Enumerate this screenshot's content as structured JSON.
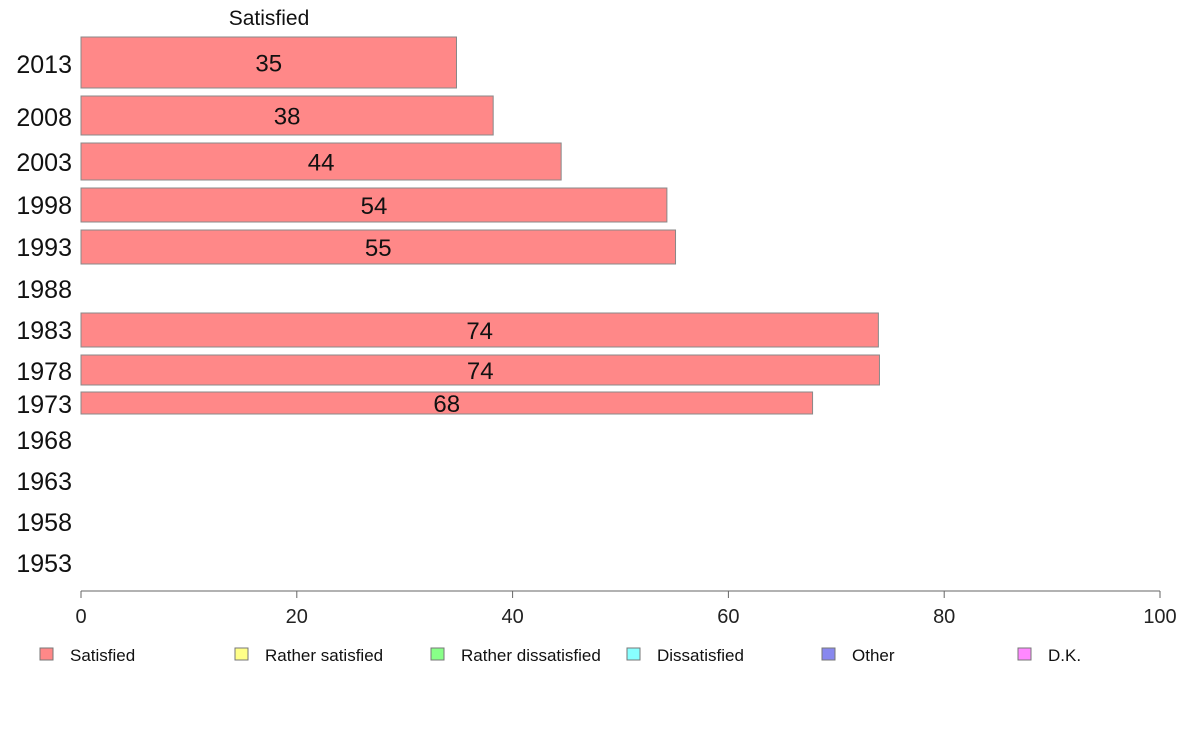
{
  "chart_data": {
    "type": "bar",
    "orientation": "horizontal",
    "column_header": "Satisfied",
    "categories": [
      "2013",
      "2008",
      "2003",
      "1998",
      "1993",
      "1988",
      "1983",
      "1978",
      "1973",
      "1968",
      "1963",
      "1958",
      "1953"
    ],
    "series": [
      {
        "name": "Satisfied",
        "color": "#ff8888",
        "values": [
          35,
          38,
          44,
          54,
          55,
          null,
          74,
          74,
          68,
          null,
          null,
          null,
          null
        ],
        "exact_values": [
          34.8,
          38.2,
          44.5,
          54.3,
          55.1,
          null,
          73.9,
          74.0,
          67.8,
          null,
          null,
          null,
          null
        ]
      }
    ],
    "xlim": [
      0,
      100
    ],
    "xticks": [
      0,
      20,
      40,
      60,
      80,
      100
    ],
    "grid": false,
    "legend": {
      "position": "bottom",
      "items": [
        {
          "label": "Satisfied",
          "color": "#ff8888"
        },
        {
          "label": "Rather satisfied",
          "color": "#ffff88"
        },
        {
          "label": "Rather dissatisfied",
          "color": "#88ff88"
        },
        {
          "label": "Dissatisfied",
          "color": "#88ffff"
        },
        {
          "label": "Other",
          "color": "#8888ee"
        },
        {
          "label": "D.K.",
          "color": "#ff88ff"
        }
      ]
    }
  }
}
